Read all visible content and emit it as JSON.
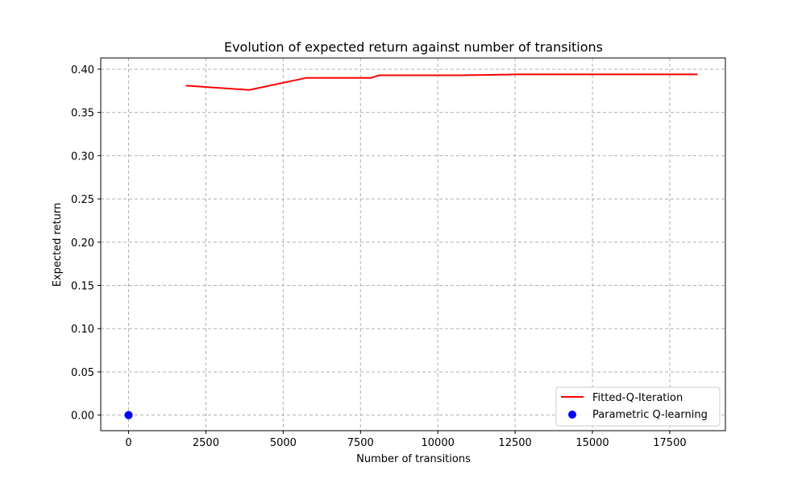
{
  "chart_data": {
    "type": "line",
    "title": "Evolution of expected return against number of transitions",
    "xlabel": "Number of transitions",
    "ylabel": "Expected return",
    "xlim": [
      -900,
      19300
    ],
    "ylim": [
      -0.018,
      0.413
    ],
    "xticks": [
      0,
      2500,
      5000,
      7500,
      10000,
      12500,
      15000,
      17500
    ],
    "xtick_labels": [
      "0",
      "2500",
      "5000",
      "7500",
      "10000",
      "12500",
      "15000",
      "17500"
    ],
    "yticks": [
      0.0,
      0.05,
      0.1,
      0.15,
      0.2,
      0.25,
      0.3,
      0.35,
      0.4
    ],
    "ytick_labels": [
      "0.00",
      "0.05",
      "0.10",
      "0.15",
      "0.20",
      "0.25",
      "0.30",
      "0.35",
      "0.40"
    ],
    "grid": true,
    "legend_position": "bottom-right",
    "series": [
      {
        "name": "Fitted-Q-Iteration",
        "kind": "line",
        "color": "#ff0000",
        "x": [
          1850,
          3900,
          5750,
          7850,
          8100,
          10800,
          12500,
          18400
        ],
        "y": [
          0.381,
          0.376,
          0.39,
          0.39,
          0.393,
          0.393,
          0.394,
          0.394
        ]
      },
      {
        "name": "Parametric Q-learning",
        "kind": "scatter",
        "color": "#0000ff",
        "x": [
          0,
          0
        ],
        "y": [
          0.0,
          0.0
        ]
      }
    ]
  }
}
